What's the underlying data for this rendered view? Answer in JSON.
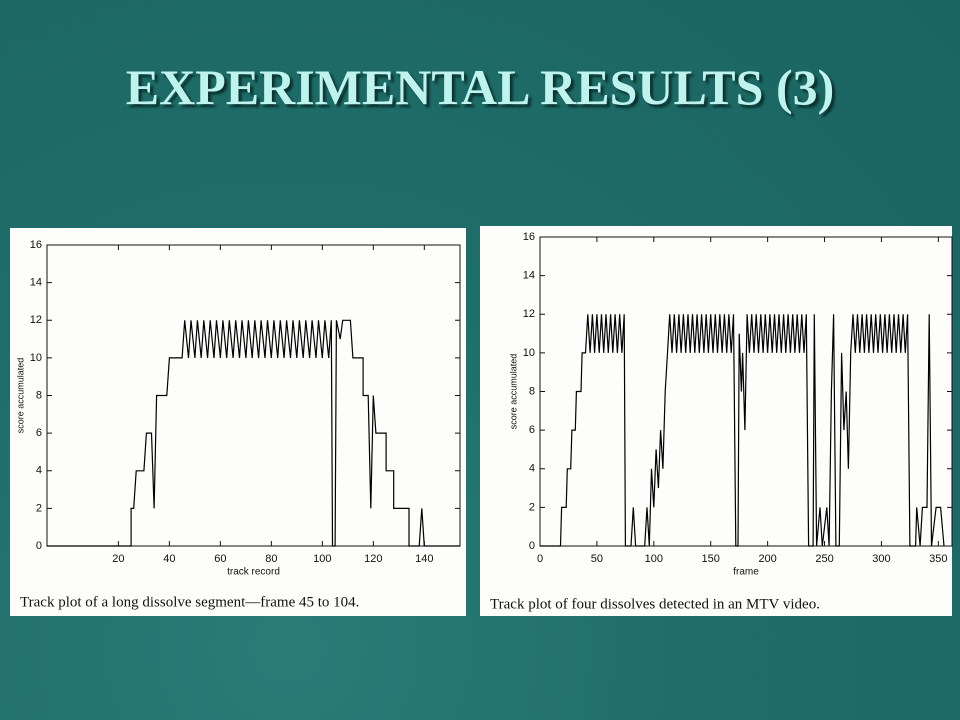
{
  "slide_title": "EXPERIMENTAL RESULTS (3)",
  "chart_data": [
    {
      "type": "line",
      "caption": "Track plot of a long dissolve segment—frame 45 to 104.",
      "xlabel": "track record",
      "ylabel": "score accumulated",
      "color": "#000000",
      "xlim": [
        -8,
        154
      ],
      "ylim": [
        0,
        16
      ],
      "xticks": [
        20,
        40,
        60,
        80,
        100,
        120,
        140
      ],
      "yticks": [
        0,
        2,
        4,
        6,
        8,
        10,
        12,
        14,
        16
      ],
      "x": [
        -8,
        25,
        25,
        26,
        27,
        30,
        31,
        33,
        34,
        35,
        39,
        40,
        45,
        46,
        47.5,
        48.5,
        50,
        51,
        52.5,
        53.5,
        55,
        56,
        57.5,
        58.5,
        60,
        61,
        62.5,
        63.5,
        65,
        66,
        67.5,
        68.5,
        70,
        71,
        72.5,
        73.5,
        75,
        76,
        77.5,
        78.5,
        80,
        81,
        82.5,
        83.5,
        85,
        86,
        87.5,
        88.5,
        90,
        91,
        92.5,
        93.5,
        95,
        96,
        97.5,
        98.5,
        100,
        101,
        102.5,
        103.5,
        104,
        105,
        105.5,
        107,
        108,
        111,
        112,
        116,
        116,
        118,
        119,
        120,
        121,
        125,
        125,
        128,
        128,
        134,
        134,
        138,
        139,
        140,
        154
      ],
      "values": [
        0,
        0,
        2,
        2,
        4,
        4,
        6,
        6,
        2,
        8,
        8,
        10,
        10,
        12,
        10,
        12,
        10,
        12,
        10,
        12,
        10,
        12,
        10,
        12,
        10,
        12,
        10,
        12,
        10,
        12,
        10,
        12,
        10,
        12,
        10,
        12,
        10,
        12,
        10,
        12,
        10,
        12,
        10,
        12,
        10,
        12,
        10,
        12,
        10,
        12,
        10,
        12,
        10,
        12,
        10,
        12,
        10,
        12,
        10,
        12,
        0,
        0,
        12,
        11,
        12,
        12,
        10,
        10,
        8,
        8,
        2,
        8,
        6,
        6,
        4,
        4,
        2,
        2,
        0,
        0,
        2,
        0,
        0
      ]
    },
    {
      "type": "line",
      "caption": "Track plot of four dissolves detected in an MTV video.",
      "xlabel": "frame",
      "ylabel": "score accumulated",
      "color": "#000000",
      "xlim": [
        0,
        362
      ],
      "ylim": [
        0,
        16
      ],
      "xticks": [
        0,
        50,
        100,
        150,
        200,
        250,
        300,
        350
      ],
      "yticks": [
        0,
        2,
        4,
        6,
        8,
        10,
        12,
        14,
        16
      ],
      "x": [
        0,
        18,
        19,
        23,
        24,
        27,
        28,
        31,
        32,
        36,
        37,
        40,
        42,
        44,
        46,
        48,
        50,
        52,
        54,
        56,
        58,
        60,
        62,
        64,
        66,
        68,
        70,
        72,
        74,
        75,
        80,
        82,
        84,
        92,
        94,
        96,
        98,
        100,
        102,
        104,
        106,
        108,
        110,
        112,
        114,
        116,
        118,
        120,
        122,
        124,
        126,
        128,
        130,
        132,
        134,
        136,
        138,
        140,
        142,
        144,
        146,
        148,
        150,
        152,
        154,
        156,
        158,
        160,
        162,
        164,
        166,
        168,
        170,
        172,
        174,
        175,
        177,
        178,
        180,
        182,
        184,
        186,
        188,
        190,
        192,
        194,
        196,
        198,
        200,
        202,
        204,
        206,
        208,
        210,
        212,
        214,
        216,
        218,
        220,
        222,
        224,
        226,
        228,
        230,
        232,
        234,
        236,
        240,
        241,
        243,
        246,
        248,
        252,
        254,
        256,
        258,
        260,
        263,
        265,
        267,
        269,
        271,
        273,
        275,
        277,
        279,
        281,
        283,
        285,
        287,
        289,
        291,
        293,
        295,
        297,
        299,
        301,
        303,
        305,
        307,
        309,
        311,
        313,
        315,
        317,
        319,
        321,
        323,
        325,
        330,
        331,
        334,
        336,
        340,
        342,
        344,
        348,
        352,
        355
      ],
      "values": [
        0,
        0,
        2,
        2,
        4,
        4,
        6,
        6,
        8,
        8,
        10,
        10,
        12,
        10,
        12,
        10,
        12,
        10,
        12,
        10,
        12,
        10,
        12,
        10,
        12,
        10,
        12,
        10,
        12,
        0,
        0,
        2,
        0,
        0,
        2,
        0,
        4,
        2,
        5,
        3,
        6,
        4,
        8,
        10,
        12,
        10,
        12,
        10,
        12,
        10,
        12,
        10,
        12,
        10,
        12,
        10,
        12,
        10,
        12,
        10,
        12,
        10,
        12,
        10,
        12,
        10,
        12,
        10,
        12,
        10,
        12,
        10,
        12,
        0,
        0,
        11,
        8,
        10,
        6,
        12,
        10,
        12,
        10,
        12,
        10,
        12,
        10,
        12,
        10,
        12,
        10,
        12,
        10,
        12,
        10,
        12,
        10,
        12,
        10,
        12,
        10,
        12,
        10,
        12,
        10,
        12,
        0,
        0,
        12,
        0,
        2,
        0,
        2,
        0,
        8,
        12,
        0,
        0,
        10,
        6,
        8,
        4,
        10,
        12,
        10,
        12,
        10,
        12,
        10,
        12,
        10,
        12,
        10,
        12,
        10,
        12,
        10,
        12,
        10,
        12,
        10,
        12,
        10,
        12,
        10,
        12,
        10,
        12,
        0,
        0,
        2,
        0,
        2,
        2,
        12,
        0,
        2,
        2,
        0
      ]
    }
  ]
}
